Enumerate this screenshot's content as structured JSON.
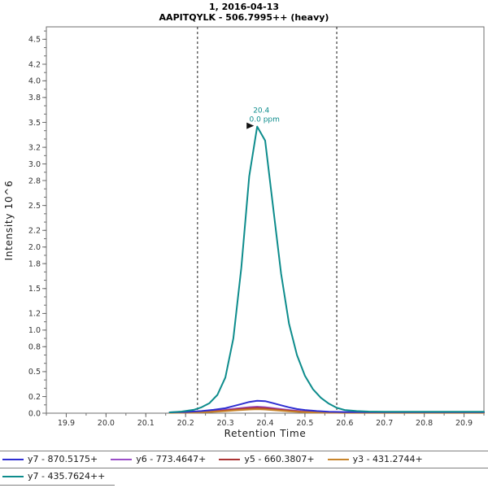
{
  "chart_data": {
    "type": "line",
    "title": "1, 2016-04-13",
    "subtitle": "AAPITQYLK - 506.7995++ (heavy)",
    "xlabel": "Retention Time",
    "ylabel": "Intensity 10^6",
    "xlim": [
      19.85,
      20.95
    ],
    "ylim": [
      0,
      4.65
    ],
    "x_ticks": [
      19.9,
      20.0,
      20.1,
      20.2,
      20.3,
      20.4,
      20.5,
      20.6,
      20.7,
      20.8,
      20.9
    ],
    "y_ticks": [
      0.0,
      0.2,
      0.5,
      0.8,
      1.0,
      1.2,
      1.5,
      1.8,
      2.0,
      2.2,
      2.5,
      2.8,
      3.0,
      3.2,
      3.5,
      3.8,
      4.0,
      4.2,
      4.5
    ],
    "grid": false,
    "legend_position": "bottom",
    "integration_boundaries": [
      20.23,
      20.58
    ],
    "annotation": {
      "label_rt": "20.4",
      "label_ppm": "0.0 ppm",
      "x": 20.38,
      "y": 3.45,
      "color": "#0d8c8c"
    },
    "colors": {
      "axis": "#6e6e6e",
      "tick_text": "#333333",
      "boundary": "#1a1a1a",
      "title_text": "#000000"
    },
    "series": [
      {
        "name": "y7 - 870.5175+",
        "color": "#2e2ed2",
        "points": [
          [
            20.16,
            0.01
          ],
          [
            20.2,
            0.015
          ],
          [
            20.24,
            0.025
          ],
          [
            20.27,
            0.04
          ],
          [
            20.3,
            0.06
          ],
          [
            20.32,
            0.085
          ],
          [
            20.34,
            0.11
          ],
          [
            20.36,
            0.135
          ],
          [
            20.38,
            0.15
          ],
          [
            20.4,
            0.145
          ],
          [
            20.42,
            0.12
          ],
          [
            20.44,
            0.095
          ],
          [
            20.46,
            0.07
          ],
          [
            20.48,
            0.05
          ],
          [
            20.5,
            0.038
          ],
          [
            20.53,
            0.025
          ],
          [
            20.56,
            0.018
          ],
          [
            20.6,
            0.014
          ],
          [
            20.7,
            0.013
          ],
          [
            20.8,
            0.013
          ],
          [
            20.9,
            0.013
          ],
          [
            20.95,
            0.013
          ]
        ]
      },
      {
        "name": "y6 - 773.4647+",
        "color": "#9b4fc8",
        "points": [
          [
            20.16,
            0.006
          ],
          [
            20.22,
            0.012
          ],
          [
            20.26,
            0.022
          ],
          [
            20.3,
            0.04
          ],
          [
            20.33,
            0.058
          ],
          [
            20.36,
            0.072
          ],
          [
            20.38,
            0.078
          ],
          [
            20.4,
            0.072
          ],
          [
            20.43,
            0.055
          ],
          [
            20.46,
            0.038
          ],
          [
            20.49,
            0.024
          ],
          [
            20.52,
            0.015
          ],
          [
            20.56,
            0.009
          ],
          [
            20.6,
            0.007
          ],
          [
            20.7,
            0.006
          ],
          [
            20.8,
            0.006
          ],
          [
            20.9,
            0.006
          ],
          [
            20.95,
            0.006
          ]
        ]
      },
      {
        "name": "y5 - 660.3807+",
        "color": "#ab3434",
        "points": [
          [
            20.16,
            0.005
          ],
          [
            20.22,
            0.01
          ],
          [
            20.26,
            0.018
          ],
          [
            20.3,
            0.032
          ],
          [
            20.33,
            0.048
          ],
          [
            20.36,
            0.06
          ],
          [
            20.38,
            0.065
          ],
          [
            20.4,
            0.06
          ],
          [
            20.43,
            0.045
          ],
          [
            20.46,
            0.03
          ],
          [
            20.49,
            0.019
          ],
          [
            20.52,
            0.012
          ],
          [
            20.56,
            0.007
          ],
          [
            20.6,
            0.005
          ],
          [
            20.7,
            0.005
          ],
          [
            20.8,
            0.005
          ],
          [
            20.9,
            0.005
          ],
          [
            20.95,
            0.005
          ]
        ]
      },
      {
        "name": "y3 - 431.2744+",
        "color": "#c8852c",
        "points": [
          [
            20.16,
            0.004
          ],
          [
            20.22,
            0.008
          ],
          [
            20.26,
            0.014
          ],
          [
            20.3,
            0.024
          ],
          [
            20.33,
            0.035
          ],
          [
            20.36,
            0.044
          ],
          [
            20.38,
            0.048
          ],
          [
            20.4,
            0.044
          ],
          [
            20.43,
            0.033
          ],
          [
            20.46,
            0.022
          ],
          [
            20.49,
            0.014
          ],
          [
            20.52,
            0.009
          ],
          [
            20.56,
            0.006
          ],
          [
            20.6,
            0.004
          ],
          [
            20.7,
            0.004
          ],
          [
            20.8,
            0.004
          ],
          [
            20.9,
            0.004
          ],
          [
            20.95,
            0.004
          ]
        ]
      },
      {
        "name": "y7 - 435.7624++",
        "color": "#0d8c8c",
        "points": [
          [
            20.16,
            0.01
          ],
          [
            20.19,
            0.02
          ],
          [
            20.22,
            0.04
          ],
          [
            20.24,
            0.07
          ],
          [
            20.26,
            0.12
          ],
          [
            20.28,
            0.22
          ],
          [
            20.3,
            0.43
          ],
          [
            20.32,
            0.9
          ],
          [
            20.34,
            1.75
          ],
          [
            20.36,
            2.85
          ],
          [
            20.38,
            3.45
          ],
          [
            20.4,
            3.28
          ],
          [
            20.42,
            2.48
          ],
          [
            20.44,
            1.68
          ],
          [
            20.46,
            1.08
          ],
          [
            20.48,
            0.7
          ],
          [
            20.5,
            0.45
          ],
          [
            20.52,
            0.29
          ],
          [
            20.54,
            0.185
          ],
          [
            20.56,
            0.115
          ],
          [
            20.58,
            0.065
          ],
          [
            20.6,
            0.038
          ],
          [
            20.63,
            0.025
          ],
          [
            20.66,
            0.02
          ],
          [
            20.7,
            0.018
          ],
          [
            20.8,
            0.018
          ],
          [
            20.9,
            0.018
          ],
          [
            20.95,
            0.018
          ]
        ]
      }
    ],
    "draw_order": [
      1,
      2,
      3,
      0,
      4
    ],
    "legend_rows": [
      [
        0,
        1,
        2,
        3
      ],
      [
        4
      ]
    ]
  }
}
